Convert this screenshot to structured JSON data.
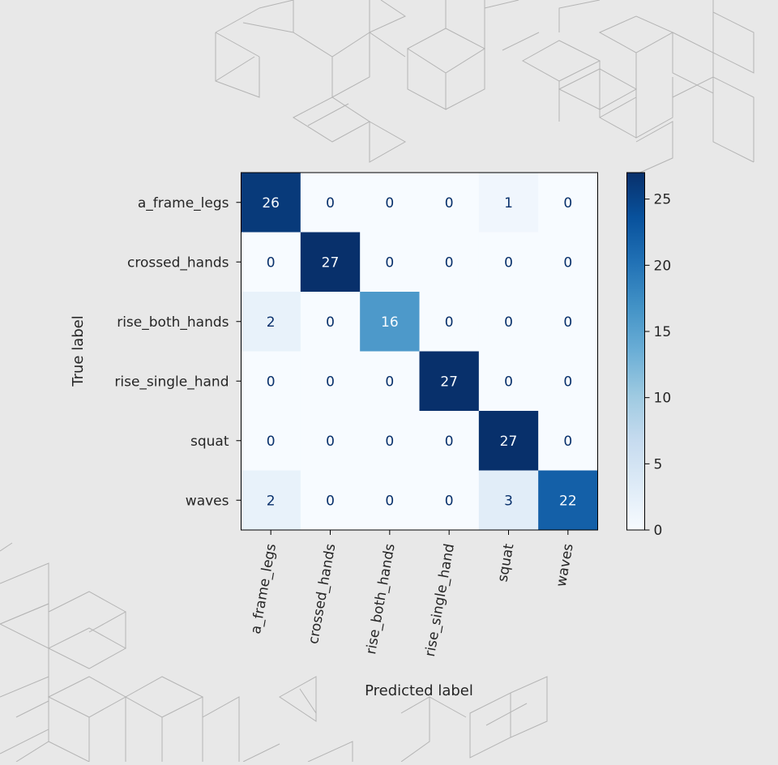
{
  "chart_data": {
    "type": "heatmap",
    "title": "",
    "xlabel": "Predicted label",
    "ylabel": "True label",
    "x_categories": [
      "a_frame_legs",
      "crossed_hands",
      "rise_both_hands",
      "rise_single_hand",
      "squat",
      "waves"
    ],
    "y_categories": [
      "a_frame_legs",
      "crossed_hands",
      "rise_both_hands",
      "rise_single_hand",
      "squat",
      "waves"
    ],
    "values": [
      [
        26,
        0,
        0,
        0,
        1,
        0
      ],
      [
        0,
        27,
        0,
        0,
        0,
        0
      ],
      [
        2,
        0,
        16,
        0,
        0,
        0
      ],
      [
        0,
        0,
        0,
        27,
        0,
        0
      ],
      [
        0,
        0,
        0,
        0,
        27,
        0
      ],
      [
        2,
        0,
        0,
        0,
        3,
        22
      ]
    ],
    "colorbar": {
      "range": [
        0,
        27
      ],
      "ticks": [
        "0",
        "5",
        "10",
        "15",
        "20",
        "25"
      ],
      "colormap": "Blues"
    },
    "x_tick_rotation": "vertical-ish (about -80 degrees)"
  }
}
